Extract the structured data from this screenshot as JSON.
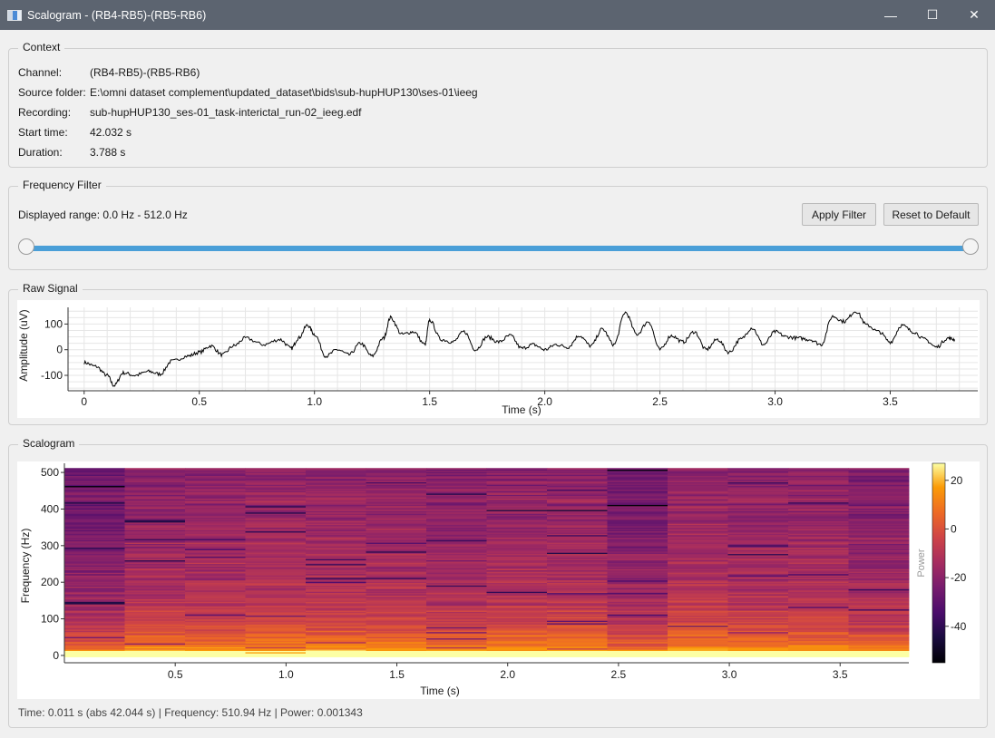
{
  "window": {
    "title": "Scalogram - (RB4-RB5)-(RB5-RB6)",
    "icon": "app-window-icon",
    "controls": {
      "minimize": "—",
      "maximize": "☐",
      "close": "✕"
    }
  },
  "context": {
    "title": "Context",
    "rows": [
      {
        "label": "Channel:",
        "value": "(RB4-RB5)-(RB5-RB6)"
      },
      {
        "label": "Source folder:",
        "value": "E:\\omni dataset complement\\updated_dataset\\bids\\sub-hupHUP130\\ses-01\\ieeg"
      },
      {
        "label": "Recording:",
        "value": "sub-hupHUP130_ses-01_task-interictal_run-02_ieeg.edf"
      },
      {
        "label": "Start time:",
        "value": "42.032 s"
      },
      {
        "label": "Duration:",
        "value": "3.788 s"
      }
    ]
  },
  "filter": {
    "title": "Frequency Filter",
    "range_text": "Displayed range: 0.0 Hz - 512.0 Hz",
    "apply_label": "Apply Filter",
    "reset_label": "Reset to Default",
    "slider_low": 0.0,
    "slider_high": 512.0,
    "slider_max": 512.0,
    "accent": "#4a9fd8"
  },
  "raw": {
    "title": "Raw Signal",
    "chart_data": {
      "type": "line",
      "xlabel": "Time (s)",
      "ylabel": "Amplitude (uV)",
      "xlim": [
        -0.07,
        3.88
      ],
      "ylim": [
        -160,
        165
      ],
      "xticks": [
        0,
        0.5,
        1.0,
        1.5,
        2.0,
        2.5,
        3.0,
        3.5
      ],
      "xtick_labels": [
        "0",
        "0.5",
        "1.0",
        "1.5",
        "2.0",
        "2.5",
        "3.0",
        "3.5"
      ],
      "yticks": [
        100,
        0,
        -100
      ],
      "ytick_labels": [
        "100",
        "0",
        "-100"
      ],
      "grid": true,
      "line_color": "#000000",
      "x": [
        0,
        0.05,
        0.1,
        0.13,
        0.17,
        0.22,
        0.28,
        0.33,
        0.38,
        0.45,
        0.5,
        0.55,
        0.6,
        0.65,
        0.7,
        0.78,
        0.85,
        0.9,
        0.93,
        0.97,
        1.0,
        1.05,
        1.1,
        1.15,
        1.2,
        1.25,
        1.3,
        1.33,
        1.38,
        1.43,
        1.48,
        1.5,
        1.55,
        1.6,
        1.65,
        1.7,
        1.75,
        1.8,
        1.85,
        1.9,
        1.95,
        2.0,
        2.05,
        2.1,
        2.15,
        2.2,
        2.25,
        2.3,
        2.35,
        2.4,
        2.45,
        2.5,
        2.55,
        2.6,
        2.65,
        2.7,
        2.75,
        2.8,
        2.85,
        2.9,
        2.95,
        3.0,
        3.05,
        3.1,
        3.15,
        3.2,
        3.25,
        3.3,
        3.35,
        3.4,
        3.45,
        3.5,
        3.55,
        3.6,
        3.65,
        3.7,
        3.75,
        3.78
      ],
      "y": [
        -50,
        -65,
        -100,
        -140,
        -90,
        -100,
        -85,
        -95,
        -45,
        -25,
        -10,
        15,
        -20,
        15,
        45,
        20,
        40,
        5,
        45,
        95,
        60,
        -25,
        0,
        -20,
        25,
        -25,
        45,
        125,
        60,
        70,
        20,
        115,
        40,
        30,
        70,
        0,
        50,
        30,
        55,
        5,
        20,
        0,
        20,
        10,
        55,
        15,
        80,
        20,
        145,
        60,
        110,
        0,
        55,
        30,
        70,
        0,
        40,
        -10,
        40,
        85,
        20,
        70,
        50,
        45,
        40,
        20,
        130,
        110,
        150,
        95,
        70,
        30,
        95,
        70,
        40,
        10,
        45,
        40
      ]
    }
  },
  "scalogram": {
    "title": "Scalogram",
    "chart_data": {
      "type": "heatmap",
      "xlabel": "Time (s)",
      "ylabel": "Frequency (Hz)",
      "colorbar_label": "Power",
      "xlim": [
        0,
        3.81
      ],
      "ylim": [
        -20,
        525
      ],
      "xticks": [
        0.5,
        1.0,
        1.5,
        2.0,
        2.5,
        3.0,
        3.5
      ],
      "xtick_labels": [
        "0.5",
        "1.0",
        "1.5",
        "2.0",
        "2.5",
        "3.0",
        "3.5"
      ],
      "yticks": [
        0,
        100,
        200,
        300,
        400,
        500
      ],
      "ytick_labels": [
        "0",
        "100",
        "200",
        "300",
        "400",
        "500"
      ],
      "colorbar_ticks": [
        20,
        0,
        -20,
        -40
      ],
      "colorbar_tick_labels": [
        "20",
        "0",
        "-20",
        "-40"
      ],
      "colorbar_range": [
        -55,
        27
      ],
      "colormap": "inferno",
      "time_bins": 14,
      "freq_max": 512,
      "freq_min": -4
    }
  },
  "status": {
    "text": "Time: 0.011 s (abs 42.044 s) | Frequency: 510.94 Hz | Power: 0.001343"
  }
}
